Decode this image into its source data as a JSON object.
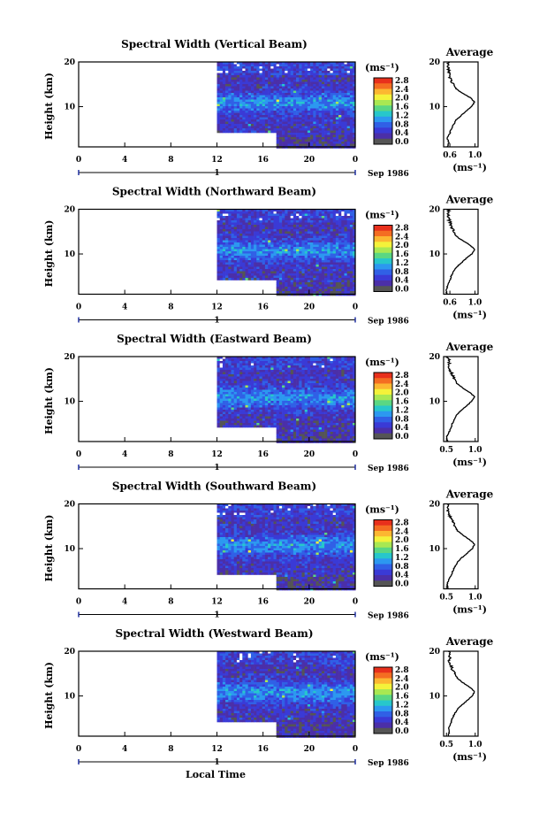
{
  "figure": {
    "xlabel": "Local Time",
    "date_label": "Sep 1986",
    "day_label": "1",
    "height_label": "Height (km)"
  },
  "colorbar": {
    "unit": "(ms⁻¹)",
    "ticks": [
      "2.8",
      "2.4",
      "2.0",
      "1.6",
      "1.2",
      "0.8",
      "0.4",
      "0.0"
    ],
    "colors": [
      "#e8301c",
      "#f46d22",
      "#fcb731",
      "#f4f23a",
      "#a9e852",
      "#5ad783",
      "#27c7cb",
      "#2c98f0",
      "#3060e6",
      "#3a3ad6",
      "#4b2fa8",
      "#555555"
    ]
  },
  "chart_data": [
    {
      "type": "heatmap",
      "title": "Spectral Width (Vertical Beam)",
      "xlabel": "Local Time",
      "ylabel": "Height (km)",
      "x_ticks": [
        "0",
        "4",
        "8",
        "12",
        "16",
        "20",
        "0"
      ],
      "y_ticks": [
        "20",
        "10"
      ],
      "xlim": [
        0,
        24
      ],
      "ylim": [
        1,
        20
      ],
      "data_start_hour": 12,
      "data_gap": {
        "hours": [
          12,
          17
        ],
        "height_below_km": 4.5
      },
      "colorbar_unit": "(ms⁻¹)",
      "colorbar_ticks": [
        "2.8",
        "2.4",
        "2.0",
        "1.6",
        "1.2",
        "0.8",
        "0.4",
        "0.0"
      ],
      "profile": {
        "title": "Average",
        "xlabel": "(ms⁻¹)",
        "x_ticks": [
          "0.6",
          "1.0"
        ],
        "xlim": [
          0.5,
          1.05
        ],
        "y_ticks": [
          "20",
          "10"
        ],
        "heights": [
          1,
          2,
          3,
          4,
          5,
          6,
          7,
          8,
          9,
          10,
          11,
          12,
          13,
          14,
          15,
          16,
          17,
          18,
          19,
          20
        ],
        "values": [
          0.56,
          0.58,
          0.56,
          0.6,
          0.62,
          0.66,
          0.7,
          0.78,
          0.86,
          0.95,
          0.99,
          0.93,
          0.8,
          0.7,
          0.66,
          0.62,
          0.6,
          0.58,
          0.58,
          0.57
        ]
      }
    },
    {
      "type": "heatmap",
      "title": "Spectral Width (Northward Beam)",
      "xlabel": "Local Time",
      "ylabel": "Height (km)",
      "x_ticks": [
        "0",
        "4",
        "8",
        "12",
        "16",
        "20",
        "0"
      ],
      "y_ticks": [
        "20",
        "10"
      ],
      "xlim": [
        0,
        24
      ],
      "ylim": [
        1,
        20
      ],
      "data_start_hour": 12,
      "data_gap": {
        "hours": [
          12,
          17
        ],
        "height_below_km": 4.5
      },
      "colorbar_unit": "(ms⁻¹)",
      "colorbar_ticks": [
        "2.8",
        "2.4",
        "2.0",
        "1.6",
        "1.2",
        "0.8",
        "0.4",
        "0.0"
      ],
      "profile": {
        "title": "Average",
        "xlabel": "(ms⁻¹)",
        "x_ticks": [
          "0.6",
          "1.0"
        ],
        "xlim": [
          0.5,
          1.05
        ],
        "y_ticks": [
          "20",
          "10"
        ],
        "heights": [
          1,
          2,
          3,
          4,
          5,
          6,
          7,
          8,
          9,
          10,
          11,
          12,
          13,
          14,
          15,
          16,
          17,
          18,
          19,
          20
        ],
        "values": [
          0.55,
          0.54,
          0.57,
          0.6,
          0.62,
          0.65,
          0.7,
          0.78,
          0.86,
          0.95,
          1.0,
          0.92,
          0.8,
          0.7,
          0.66,
          0.63,
          0.6,
          0.58,
          0.56,
          0.59
        ]
      }
    },
    {
      "type": "heatmap",
      "title": "Spectral Width (Eastward Beam)",
      "xlabel": "Local Time",
      "ylabel": "Height (km)",
      "x_ticks": [
        "0",
        "4",
        "8",
        "12",
        "16",
        "20",
        "0"
      ],
      "y_ticks": [
        "20",
        "10"
      ],
      "xlim": [
        0,
        24
      ],
      "ylim": [
        1,
        20
      ],
      "data_start_hour": 12,
      "data_gap": {
        "hours": [
          12,
          17
        ],
        "height_below_km": 4.5
      },
      "colorbar_unit": "(ms⁻¹)",
      "colorbar_ticks": [
        "2.8",
        "2.4",
        "2.0",
        "1.6",
        "1.2",
        "0.8",
        "0.4",
        "0.0"
      ],
      "profile": {
        "title": "Average",
        "xlabel": "(ms⁻¹)",
        "x_ticks": [
          "0.5",
          "1.0"
        ],
        "xlim": [
          0.45,
          1.05
        ],
        "y_ticks": [
          "20",
          "10"
        ],
        "heights": [
          1,
          2,
          3,
          4,
          5,
          6,
          7,
          8,
          9,
          10,
          11,
          12,
          13,
          14,
          15,
          16,
          17,
          18,
          19,
          20
        ],
        "values": [
          0.52,
          0.5,
          0.54,
          0.58,
          0.6,
          0.64,
          0.68,
          0.76,
          0.85,
          0.94,
          0.99,
          0.9,
          0.78,
          0.68,
          0.64,
          0.6,
          0.56,
          0.54,
          0.55,
          0.52
        ]
      }
    },
    {
      "type": "heatmap",
      "title": "Spectral Width (Southward Beam)",
      "xlabel": "Local Time",
      "ylabel": "Height (km)",
      "x_ticks": [
        "0",
        "4",
        "8",
        "12",
        "16",
        "20",
        "0"
      ],
      "y_ticks": [
        "20",
        "10"
      ],
      "xlim": [
        0,
        24
      ],
      "ylim": [
        1,
        20
      ],
      "data_start_hour": 12,
      "data_gap": {
        "hours": [
          12,
          17
        ],
        "height_below_km": 4.5
      },
      "colorbar_unit": "(ms⁻¹)",
      "colorbar_ticks": [
        "2.8",
        "2.4",
        "2.0",
        "1.6",
        "1.2",
        "0.8",
        "0.4",
        "0.0"
      ],
      "profile": {
        "title": "Average",
        "xlabel": "(ms⁻¹)",
        "x_ticks": [
          "0.5",
          "1.0"
        ],
        "xlim": [
          0.45,
          1.05
        ],
        "y_ticks": [
          "20",
          "10"
        ],
        "heights": [
          1,
          2,
          3,
          4,
          5,
          6,
          7,
          8,
          9,
          10,
          11,
          12,
          13,
          14,
          15,
          16,
          17,
          18,
          19,
          20
        ],
        "values": [
          0.53,
          0.51,
          0.54,
          0.58,
          0.61,
          0.65,
          0.69,
          0.77,
          0.86,
          0.95,
          0.99,
          0.9,
          0.79,
          0.69,
          0.65,
          0.61,
          0.57,
          0.53,
          0.52,
          0.55
        ]
      }
    },
    {
      "type": "heatmap",
      "title": "Spectral Width (Westward Beam)",
      "xlabel": "Local Time",
      "ylabel": "Height (km)",
      "x_ticks": [
        "0",
        "4",
        "8",
        "12",
        "16",
        "20",
        "0"
      ],
      "y_ticks": [
        "20",
        "10"
      ],
      "xlim": [
        0,
        24
      ],
      "ylim": [
        1,
        20
      ],
      "data_start_hour": 12,
      "data_gap": {
        "hours": [
          12,
          17
        ],
        "height_below_km": 4.5
      },
      "colorbar_unit": "(ms⁻¹)",
      "colorbar_ticks": [
        "2.8",
        "2.4",
        "2.0",
        "1.6",
        "1.2",
        "0.8",
        "0.4",
        "0.0"
      ],
      "profile": {
        "title": "Average",
        "xlabel": "(ms⁻¹)",
        "x_ticks": [
          "0.5",
          "1.0"
        ],
        "xlim": [
          0.45,
          1.05
        ],
        "y_ticks": [
          "20",
          "10"
        ],
        "heights": [
          1,
          2,
          3,
          4,
          5,
          6,
          7,
          8,
          9,
          10,
          11,
          12,
          13,
          14,
          15,
          16,
          17,
          18,
          19,
          20
        ],
        "values": [
          0.53,
          0.55,
          0.54,
          0.58,
          0.6,
          0.64,
          0.69,
          0.77,
          0.86,
          0.95,
          0.99,
          0.9,
          0.78,
          0.69,
          0.64,
          0.6,
          0.57,
          0.55,
          0.56,
          0.53
        ]
      }
    }
  ]
}
